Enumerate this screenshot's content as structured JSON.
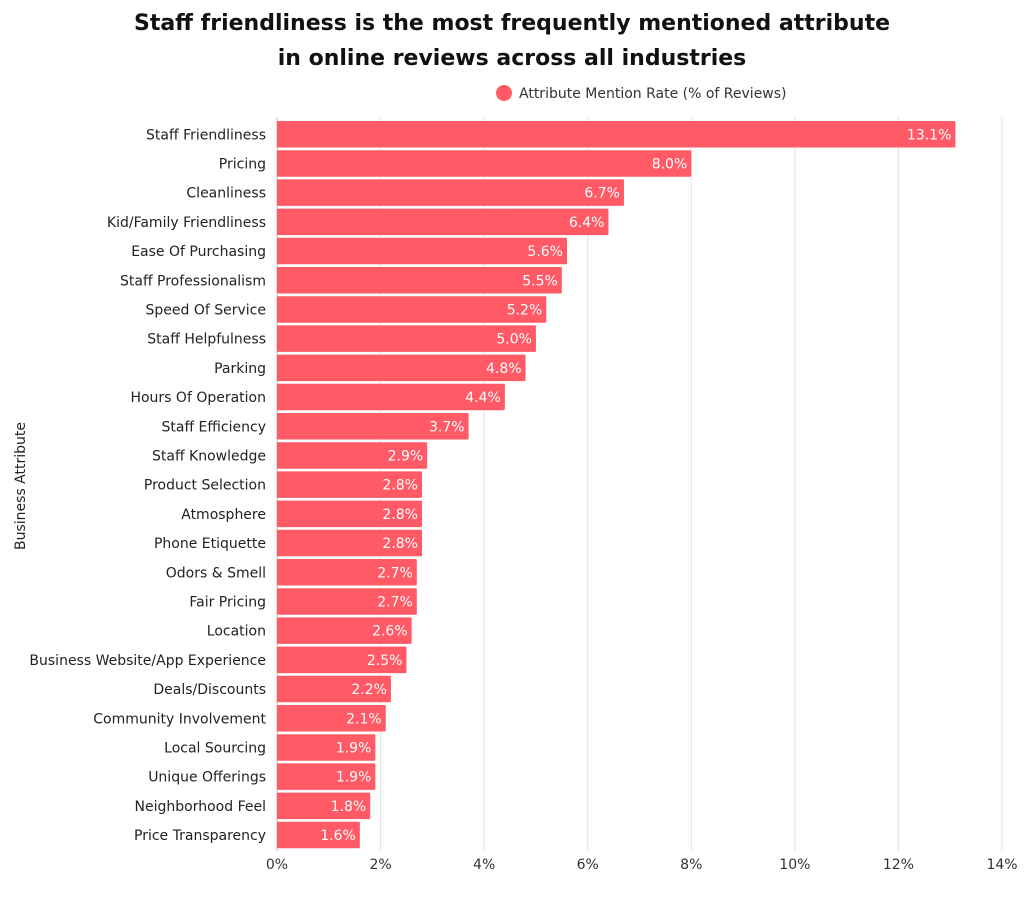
{
  "chart_data": {
    "type": "bar",
    "orientation": "horizontal",
    "title": "Staff friendliness is the most frequently mentioned attribute in online reviews across all industries",
    "title_lines": [
      "Staff friendliness is the most frequently mentioned attribute",
      "in online reviews across all industries"
    ],
    "xlabel": "",
    "ylabel": "Business Attribute",
    "xlim": [
      0,
      14
    ],
    "xticks": [
      "0%",
      "2%",
      "4%",
      "6%",
      "8%",
      "10%",
      "12%",
      "14%"
    ],
    "grid": "vertical",
    "legend_position": "top-right",
    "color": "#FF5A65",
    "categories": [
      "Staff Friendliness",
      "Pricing",
      "Cleanliness",
      "Kid/Family Friendliness",
      "Ease Of Purchasing",
      "Staff Professionalism",
      "Speed Of Service",
      "Staff Helpfulness",
      "Parking",
      "Hours Of Operation",
      "Staff Efficiency",
      "Staff Knowledge",
      "Product Selection",
      "Atmosphere",
      "Phone Etiquette",
      "Odors & Smell",
      "Fair Pricing",
      "Location",
      "Business Website/App Experience",
      "Deals/Discounts",
      "Community Involvement",
      "Local Sourcing",
      "Unique Offerings",
      "Neighborhood Feel",
      "Price Transparency"
    ],
    "series": [
      {
        "name": "Attribute Mention Rate (% of Reviews)",
        "values": [
          13.1,
          8.0,
          6.7,
          6.4,
          5.6,
          5.5,
          5.2,
          5.0,
          4.8,
          4.4,
          3.7,
          2.9,
          2.8,
          2.8,
          2.8,
          2.7,
          2.7,
          2.6,
          2.5,
          2.2,
          2.1,
          1.9,
          1.9,
          1.8,
          1.6
        ],
        "labels": [
          "13.1%",
          "8.0%",
          "6.7%",
          "6.4%",
          "5.6%",
          "5.5%",
          "5.2%",
          "5.0%",
          "4.8%",
          "4.4%",
          "3.7%",
          "2.9%",
          "2.8%",
          "2.8%",
          "2.8%",
          "2.7%",
          "2.7%",
          "2.6%",
          "2.5%",
          "2.2%",
          "2.1%",
          "1.9%",
          "1.9%",
          "1.8%",
          "1.6%"
        ]
      }
    ]
  }
}
